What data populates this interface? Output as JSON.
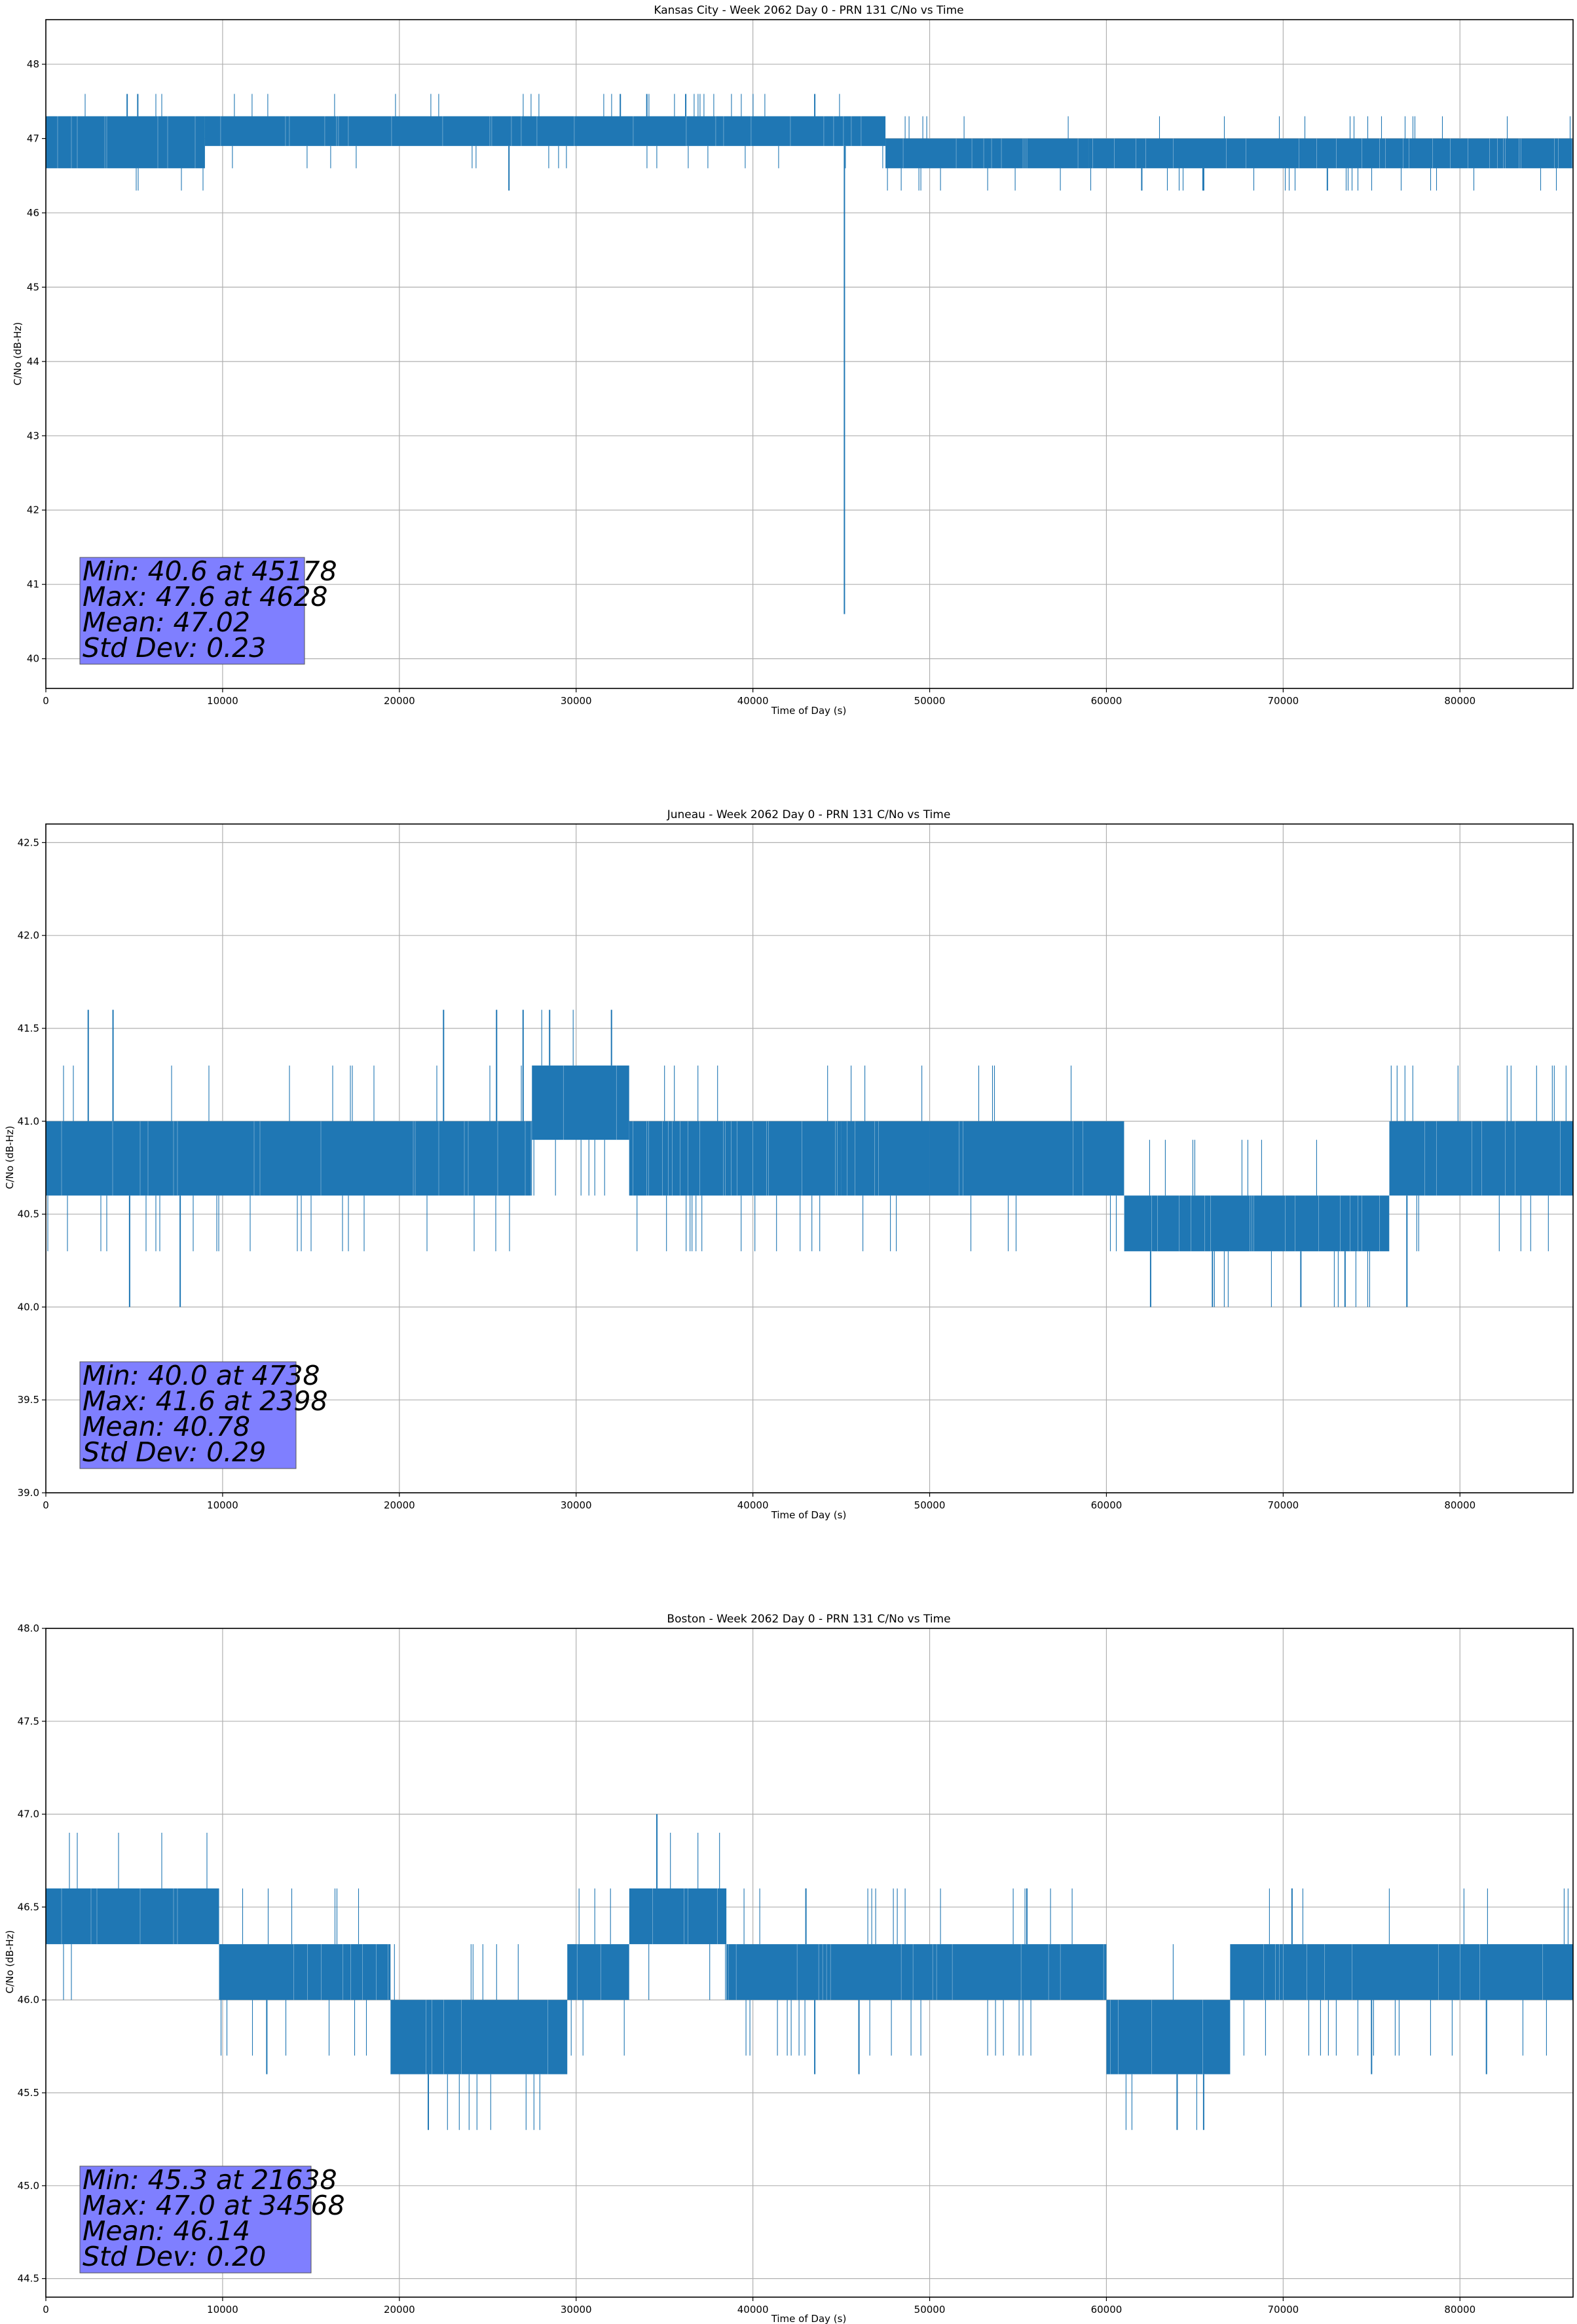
{
  "figure": {
    "background": "#ffffff",
    "line_color": "#1f77b4",
    "stats_box_color": "#8080ff"
  },
  "chart_data": [
    {
      "type": "line",
      "title": "Kansas City - Week 2062 Day 0 - PRN 131 C/No vs Time",
      "xlabel": "Time of Day (s)",
      "ylabel": "C/No (dB-Hz)",
      "xlim": [
        0,
        86400
      ],
      "ylim": [
        39.6,
        48.6
      ],
      "xticks": [
        0,
        10000,
        20000,
        30000,
        40000,
        50000,
        60000,
        70000,
        80000
      ],
      "yticks": [
        40,
        41,
        42,
        43,
        44,
        45,
        46,
        47,
        48
      ],
      "grid": true,
      "series": [
        {
          "band_segments": [
            {
              "x": [
                0,
                9000
              ],
              "lo": 46.6,
              "hi": 47.3
            },
            {
              "x": [
                9000,
                47500
              ],
              "lo": 46.9,
              "hi": 47.3
            },
            {
              "x": [
                47500,
                59000
              ],
              "lo": 46.6,
              "hi": 47.0
            },
            {
              "x": [
                59000,
                86400
              ],
              "lo": 46.6,
              "hi": 47.0
            }
          ],
          "spikes": [
            {
              "x": 4600,
              "y": 47.6
            },
            {
              "x": 5200,
              "y": 47.6
            },
            {
              "x": 32500,
              "y": 47.6
            },
            {
              "x": 34000,
              "y": 47.6
            },
            {
              "x": 36200,
              "y": 47.6
            },
            {
              "x": 43500,
              "y": 47.6
            },
            {
              "x": 26200,
              "y": 46.3
            },
            {
              "x": 62000,
              "y": 46.3
            },
            {
              "x": 65500,
              "y": 46.3
            },
            {
              "x": 72500,
              "y": 46.3
            },
            {
              "x": 45178,
              "y": 40.6
            }
          ]
        }
      ],
      "stats": {
        "min": "Min: 40.6 at 45178",
        "max": "Max: 47.6 at 4628",
        "mean": "Mean: 47.02",
        "std": "Std Dev: 0.23"
      }
    },
    {
      "type": "line",
      "title": "Juneau - Week 2062 Day 0 - PRN 131 C/No vs Time",
      "xlabel": "Time of Day (s)",
      "ylabel": "C/No (dB-Hz)",
      "xlim": [
        0,
        86400
      ],
      "ylim": [
        39.0,
        42.6
      ],
      "xticks": [
        0,
        10000,
        20000,
        30000,
        40000,
        50000,
        60000,
        70000,
        80000
      ],
      "yticks": [
        39.0,
        39.5,
        40.0,
        40.5,
        41.0,
        41.5,
        42.0,
        42.5
      ],
      "grid": true,
      "series": [
        {
          "band_segments": [
            {
              "x": [
                0,
                27500
              ],
              "lo": 40.6,
              "hi": 41.0
            },
            {
              "x": [
                27500,
                33000
              ],
              "lo": 40.9,
              "hi": 41.3
            },
            {
              "x": [
                33000,
                45000
              ],
              "lo": 40.6,
              "hi": 41.0
            },
            {
              "x": [
                45000,
                50000
              ],
              "lo": 40.6,
              "hi": 41.0
            },
            {
              "x": [
                50000,
                61000
              ],
              "lo": 40.6,
              "hi": 41.0
            },
            {
              "x": [
                61000,
                76000
              ],
              "lo": 40.3,
              "hi": 40.6
            },
            {
              "x": [
                76000,
                86400
              ],
              "lo": 40.6,
              "hi": 41.0
            }
          ],
          "spikes": [
            {
              "x": 2398,
              "y": 41.6
            },
            {
              "x": 3800,
              "y": 41.6
            },
            {
              "x": 22500,
              "y": 41.6
            },
            {
              "x": 25500,
              "y": 41.6
            },
            {
              "x": 27000,
              "y": 41.6
            },
            {
              "x": 28500,
              "y": 41.6
            },
            {
              "x": 32000,
              "y": 41.6
            },
            {
              "x": 4738,
              "y": 40.0
            },
            {
              "x": 7600,
              "y": 40.0
            },
            {
              "x": 62500,
              "y": 40.0
            },
            {
              "x": 66000,
              "y": 40.0
            },
            {
              "x": 71000,
              "y": 40.0
            },
            {
              "x": 73500,
              "y": 40.0
            },
            {
              "x": 77000,
              "y": 40.0
            }
          ]
        }
      ],
      "stats": {
        "min": "Min: 40.0 at 4738",
        "max": "Max: 41.6 at 2398",
        "mean": "Mean: 40.78",
        "std": "Std Dev: 0.29"
      }
    },
    {
      "type": "line",
      "title": "Boston - Week 2062 Day 0 - PRN 131 C/No vs Time",
      "xlabel": "Time of Day (s)",
      "ylabel": "C/No (dB-Hz)",
      "xlim": [
        0,
        86400
      ],
      "ylim": [
        44.4,
        48.0
      ],
      "xticks": [
        0,
        10000,
        20000,
        30000,
        40000,
        50000,
        60000,
        70000,
        80000
      ],
      "yticks": [
        44.5,
        45.0,
        45.5,
        46.0,
        46.5,
        47.0,
        47.5,
        48.0
      ],
      "grid": true,
      "series": [
        {
          "band_segments": [
            {
              "x": [
                0,
                9800
              ],
              "lo": 46.3,
              "hi": 46.6
            },
            {
              "x": [
                9800,
                19500
              ],
              "lo": 46.0,
              "hi": 46.3
            },
            {
              "x": [
                19500,
                29500
              ],
              "lo": 45.6,
              "hi": 46.0
            },
            {
              "x": [
                29500,
                33000
              ],
              "lo": 46.0,
              "hi": 46.3
            },
            {
              "x": [
                33000,
                38500
              ],
              "lo": 46.3,
              "hi": 46.6
            },
            {
              "x": [
                38500,
                60000
              ],
              "lo": 46.0,
              "hi": 46.3
            },
            {
              "x": [
                60000,
                67000
              ],
              "lo": 45.6,
              "hi": 46.0
            },
            {
              "x": [
                67000,
                86400
              ],
              "lo": 46.0,
              "hi": 46.3
            }
          ],
          "spikes": [
            {
              "x": 34568,
              "y": 47.0
            },
            {
              "x": 21638,
              "y": 45.3
            },
            {
              "x": 64000,
              "y": 45.3
            },
            {
              "x": 65500,
              "y": 45.3
            },
            {
              "x": 12500,
              "y": 45.6
            },
            {
              "x": 43500,
              "y": 45.6
            },
            {
              "x": 46000,
              "y": 45.6
            },
            {
              "x": 75000,
              "y": 45.6
            },
            {
              "x": 81500,
              "y": 45.6
            },
            {
              "x": 43000,
              "y": 46.6
            },
            {
              "x": 55500,
              "y": 46.6
            },
            {
              "x": 70500,
              "y": 46.6
            }
          ]
        }
      ],
      "stats": {
        "min": "Min: 45.3 at 21638",
        "max": "Max: 47.0 at 34568",
        "mean": "Mean: 46.14",
        "std": "Std Dev: 0.20"
      }
    }
  ]
}
